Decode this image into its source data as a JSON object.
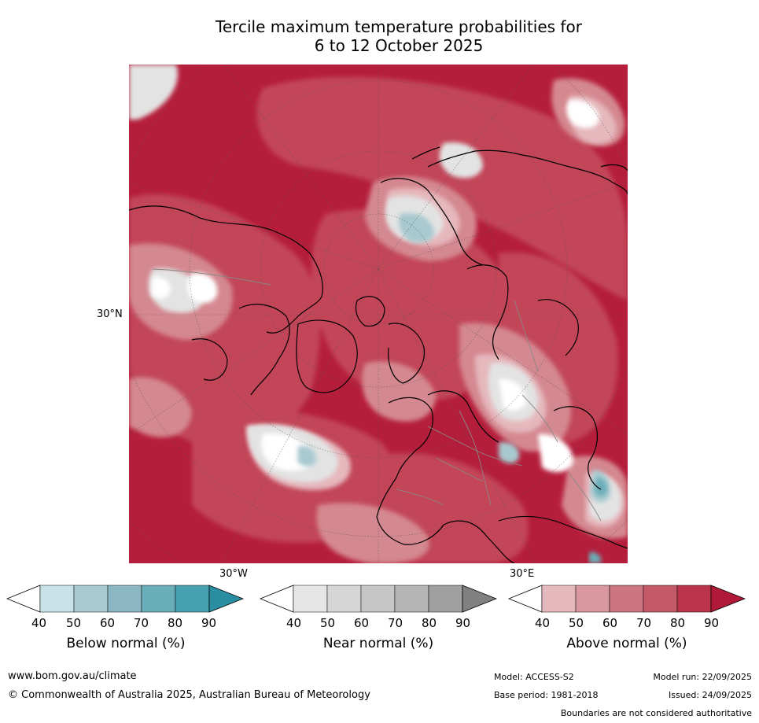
{
  "title_line1": "Tercile maximum temperature probabilities for",
  "title_line2": "6 to 12 October 2025",
  "map_labels": {
    "lat_30n": "30°N",
    "lon_30w": "30°W",
    "lon_30e": "30°E"
  },
  "colorbars": [
    {
      "label": "Below normal (%)",
      "ticks": [
        "40",
        "50",
        "60",
        "70",
        "80",
        "90"
      ],
      "colors": [
        "#c9e2e8",
        "#a8c9cf",
        "#8ab7c3",
        "#6aaeb9",
        "#47a0b0",
        "#2a8ea3"
      ]
    },
    {
      "label": "Near normal (%)",
      "ticks": [
        "40",
        "50",
        "60",
        "70",
        "80",
        "90"
      ],
      "colors": [
        "#e6e6e6",
        "#d6d6d6",
        "#c6c6c6",
        "#b4b4b4",
        "#a0a0a0",
        "#808080"
      ]
    },
    {
      "label": "Above normal (%)",
      "ticks": [
        "40",
        "50",
        "60",
        "70",
        "80",
        "90"
      ],
      "colors": [
        "#e5b8bd",
        "#d9979f",
        "#cc7480",
        "#c45a68",
        "#ba3549",
        "#b01a38"
      ]
    }
  ],
  "footer": {
    "url": "www.bom.gov.au/climate",
    "copyright": "© Commonwealth of Australia 2025, Australian Bureau of Meteorology",
    "model": "Model: ACCESS-S2",
    "base_period": "Base period: 1981-2018",
    "model_run": "Model run: 22/09/2025",
    "issued": "Issued: 24/09/2025",
    "disclaimer": "Boundaries are not considered authoritative"
  }
}
